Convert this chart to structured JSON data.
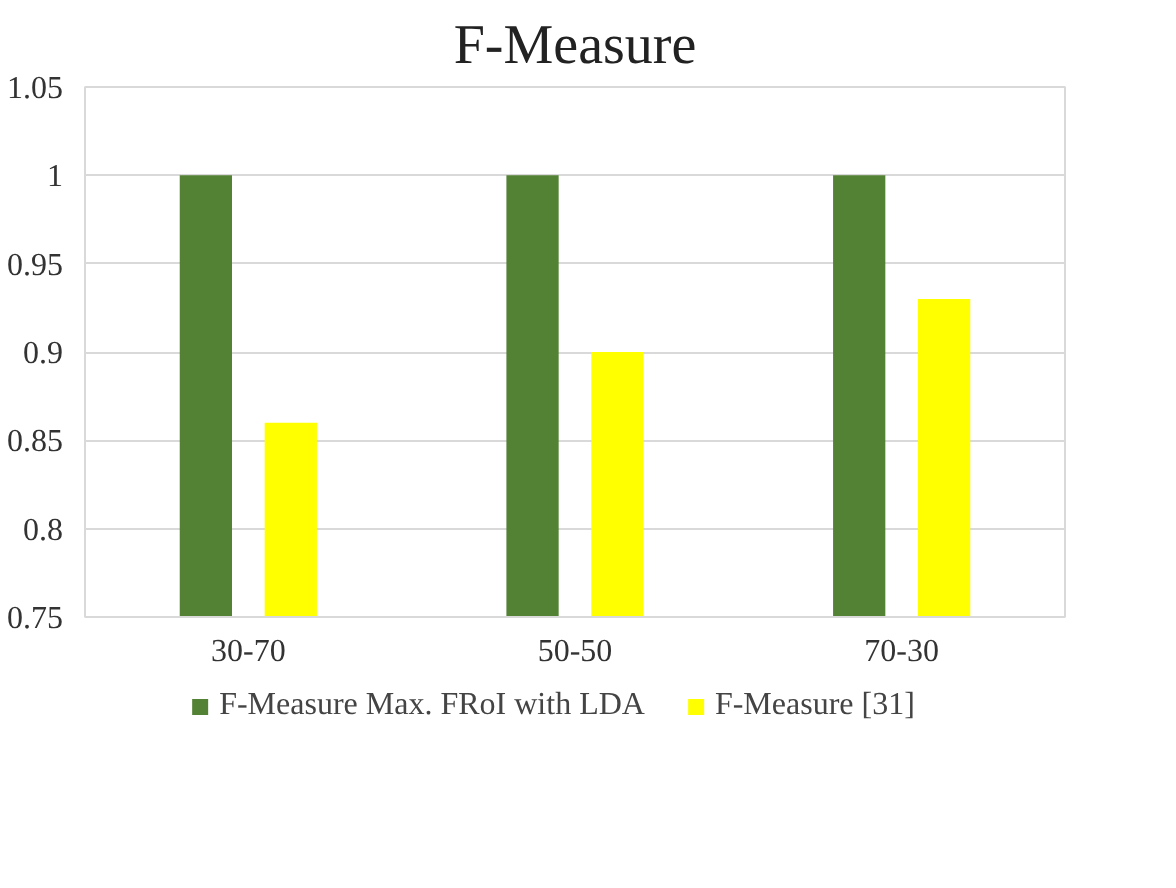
{
  "chart_data": {
    "type": "bar",
    "title": "F-Measure",
    "categories": [
      "30-70",
      "50-50",
      "70-30"
    ],
    "series": [
      {
        "name": "F-Measure Max. FRoI with LDA",
        "color": "#548235",
        "values": [
          1,
          1,
          1
        ]
      },
      {
        "name": "F-Measure [31]",
        "color": "#ffff00",
        "values": [
          0.86,
          0.9,
          0.93
        ]
      }
    ],
    "ylim": [
      0.75,
      1.05
    ],
    "yticks": [
      0.75,
      0.8,
      0.85,
      0.9,
      0.95,
      1,
      1.05
    ],
    "grid": "y",
    "legend": "bottom"
  }
}
